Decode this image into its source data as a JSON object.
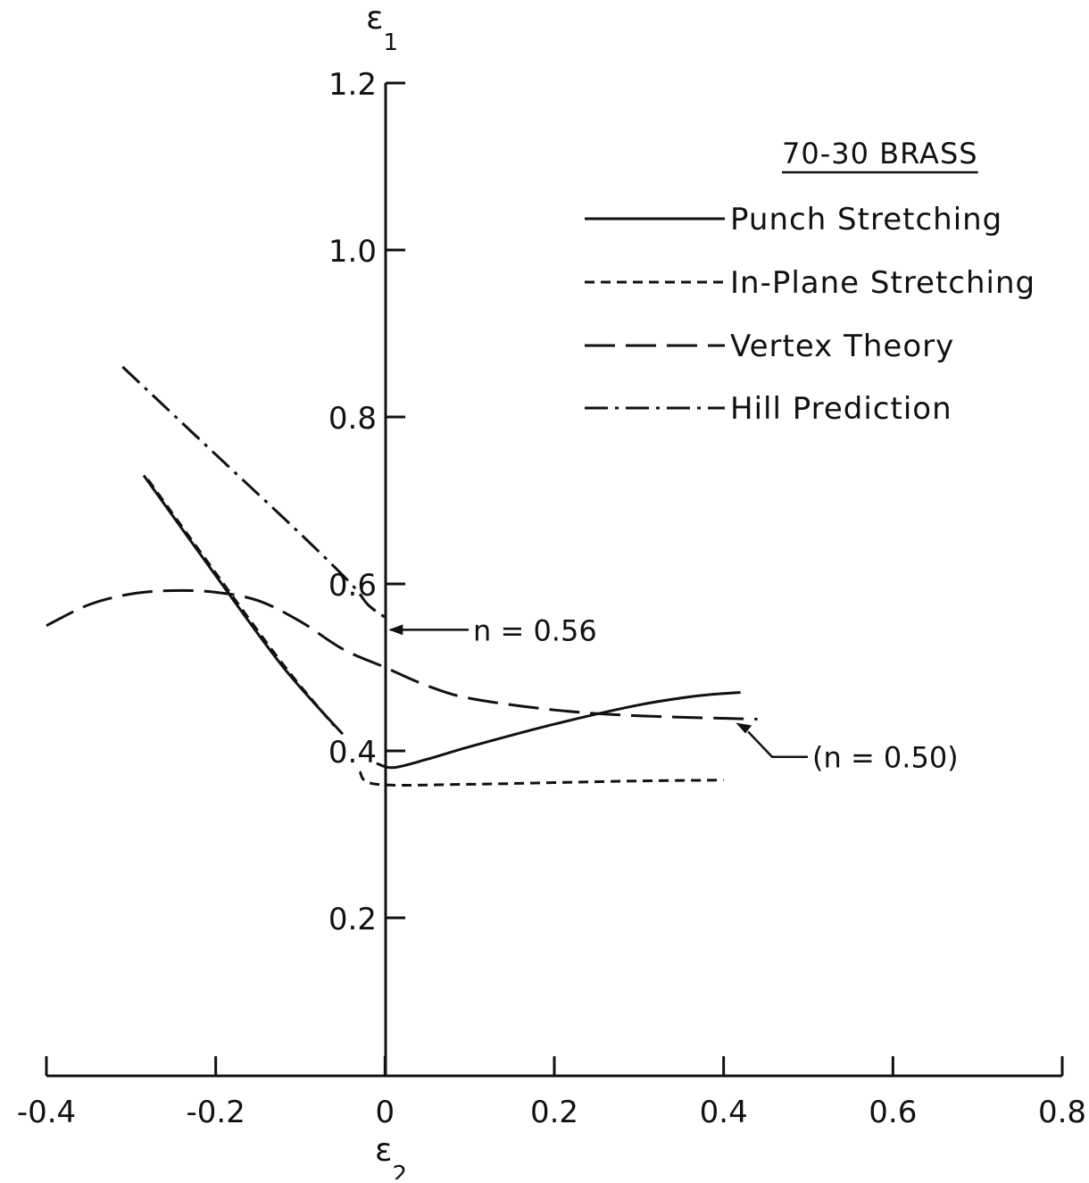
{
  "chart_data": {
    "type": "line",
    "title": "70-30 BRASS",
    "xlabel": {
      "symbol": "ε",
      "sub": "2"
    },
    "ylabel": {
      "symbol": "ε",
      "sub": "1"
    },
    "xlim": [
      -0.4,
      0.8
    ],
    "ylim": [
      0,
      1.2
    ],
    "x_ticks": [
      {
        "value": -0.4,
        "label": "-0.4"
      },
      {
        "value": -0.2,
        "label": "-0.2"
      },
      {
        "value": 0,
        "label": "0"
      },
      {
        "value": 0.2,
        "label": "0.2"
      },
      {
        "value": 0.4,
        "label": "0.4"
      },
      {
        "value": 0.6,
        "label": "0.6"
      },
      {
        "value": 0.8,
        "label": "0.8"
      }
    ],
    "y_ticks": [
      {
        "value": 0.2,
        "label": "0.2"
      },
      {
        "value": 0.4,
        "label": "0.4"
      },
      {
        "value": 0.6,
        "label": "0.6"
      },
      {
        "value": 0.8,
        "label": "0.8"
      },
      {
        "value": 1.0,
        "label": "1.0"
      },
      {
        "value": 1.2,
        "label": "1.2"
      }
    ],
    "grid": false,
    "legend_position": "top-right",
    "series": [
      {
        "name": "Punch Stretching",
        "style": "solid",
        "segments": [
          [
            [
              -0.285,
              0.73
            ],
            [
              -0.2,
              0.61
            ],
            [
              -0.12,
              0.5
            ],
            [
              -0.05,
              0.42
            ]
          ],
          [
            [
              -0.01,
              0.385
            ],
            [
              0.01,
              0.38
            ],
            [
              0.05,
              0.39
            ],
            [
              0.1,
              0.405
            ],
            [
              0.2,
              0.432
            ],
            [
              0.3,
              0.455
            ],
            [
              0.37,
              0.466
            ],
            [
              0.42,
              0.47
            ]
          ]
        ]
      },
      {
        "name": "In-Plane Stretching",
        "style": "dashed-short",
        "segments": [
          [
            [
              -0.28,
              0.725
            ],
            [
              -0.2,
              0.613
            ],
            [
              -0.12,
              0.503
            ],
            [
              -0.06,
              0.43
            ]
          ],
          [
            [
              -0.03,
              0.375
            ],
            [
              -0.01,
              0.36
            ],
            [
              0.1,
              0.36
            ],
            [
              0.2,
              0.362
            ],
            [
              0.3,
              0.364
            ],
            [
              0.4,
              0.365
            ]
          ]
        ]
      },
      {
        "name": "Vertex Theory",
        "style": "dashed-long",
        "segments": [
          [
            [
              -0.4,
              0.55
            ],
            [
              -0.35,
              0.575
            ],
            [
              -0.3,
              0.588
            ],
            [
              -0.25,
              0.592
            ],
            [
              -0.2,
              0.59
            ],
            [
              -0.15,
              0.58
            ],
            [
              -0.1,
              0.555
            ],
            [
              -0.05,
              0.522
            ],
            [
              0,
              0.5
            ],
            [
              0.05,
              0.478
            ],
            [
              0.1,
              0.463
            ],
            [
              0.2,
              0.449
            ],
            [
              0.3,
              0.442
            ],
            [
              0.44,
              0.438
            ]
          ]
        ]
      },
      {
        "name": "Hill Prediction",
        "style": "dash-dot",
        "segments": [
          [
            [
              -0.31,
              0.86
            ],
            [
              -0.2,
              0.755
            ],
            [
              -0.1,
              0.66
            ],
            [
              -0.04,
              0.6
            ],
            [
              -0.02,
              0.575
            ],
            [
              0,
              0.56
            ]
          ]
        ]
      }
    ],
    "annotations": [
      {
        "text": "n = 0.56",
        "x": 0.0,
        "y": 0.56
      },
      {
        "text": "(n = 0.50)",
        "x": 0.41,
        "y": 0.438
      }
    ]
  }
}
